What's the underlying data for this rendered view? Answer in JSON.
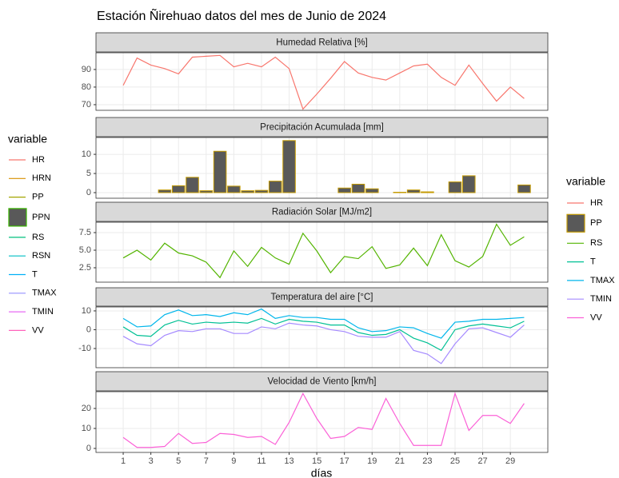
{
  "chart_data": {
    "type": "facet",
    "title": "Estación Ñirehuao datos del mes de Junio de 2024",
    "xlabel": "días",
    "x": [
      1,
      2,
      3,
      4,
      5,
      6,
      7,
      8,
      9,
      10,
      11,
      12,
      13,
      14,
      15,
      16,
      17,
      18,
      19,
      20,
      21,
      22,
      23,
      24,
      25,
      26,
      27,
      28,
      29,
      30
    ],
    "xlim": [
      -0.97,
      31.71
    ],
    "xticks": [
      1,
      3,
      5,
      7,
      9,
      11,
      13,
      15,
      17,
      19,
      21,
      23,
      25,
      27,
      29
    ],
    "grid": true,
    "legends": [
      {
        "position": "left",
        "title": "variable",
        "entries": [
          {
            "name": "HR",
            "color": "#F8766D"
          },
          {
            "name": "HRN",
            "color": "#D89000"
          },
          {
            "name": "PP",
            "color": "#A3A500"
          },
          {
            "name": "PPN",
            "color": "#39B600",
            "fill": "#595959"
          },
          {
            "name": "RS",
            "color": "#00BF7D"
          },
          {
            "name": "RSN",
            "color": "#00BFC4"
          },
          {
            "name": "T",
            "color": "#00B0F6"
          },
          {
            "name": "TMAX",
            "color": "#9590FF"
          },
          {
            "name": "TMIN",
            "color": "#E76BF3"
          },
          {
            "name": "VV",
            "color": "#FF62BC"
          }
        ]
      },
      {
        "position": "right",
        "title": "variable",
        "entries": [
          {
            "name": "HR",
            "color": "#F8766D"
          },
          {
            "name": "PP",
            "color": "#C49A00",
            "fill": "#595959"
          },
          {
            "name": "RS",
            "color": "#53B400"
          },
          {
            "name": "T",
            "color": "#00C094"
          },
          {
            "name": "TMAX",
            "color": "#00B6EB"
          },
          {
            "name": "TMIN",
            "color": "#A58AFF"
          },
          {
            "name": "VV",
            "color": "#FB61D7"
          }
        ]
      }
    ],
    "panels": [
      {
        "type": "line",
        "title": "Humedad Relativa [%]",
        "ylim": [
          66.8,
          99.5
        ],
        "yticks": [
          70,
          80,
          90
        ],
        "series": [
          {
            "name": "HR",
            "color": "#F8766D",
            "values": [
              81,
              96.5,
              92.5,
              90.5,
              87.5,
              97,
              97.5,
              98,
              91.5,
              93.5,
              91.5,
              97,
              90.5,
              67.5,
              76,
              85,
              94.5,
              88,
              85.5,
              84,
              88,
              92,
              93,
              85.5,
              81,
              92.5,
              82,
              72,
              80,
              73.5
            ]
          }
        ]
      },
      {
        "type": "bar",
        "title": "Precipitación Acumulada [mm]",
        "ylim": [
          -1.46,
          14.4
        ],
        "yticks": [
          0,
          5,
          10
        ],
        "series": [
          {
            "name": "PP",
            "color": "#C49A00",
            "fill": "#595959",
            "values": [
              0,
              0,
              0,
              0.7,
              1.8,
              4,
              0.5,
              10.8,
              1.7,
              0.5,
              0.6,
              3,
              13.6,
              0,
              0,
              0,
              1.2,
              2.2,
              1,
              0,
              0.1,
              0.7,
              0.2,
              0,
              2.8,
              4.4,
              0,
              0,
              0,
              2
            ]
          }
        ]
      },
      {
        "type": "line",
        "title": "Radiación Solar [MJ/m2]",
        "ylim": [
          0.45,
          8.98
        ],
        "yticks": [
          2.5,
          {
            "value": 5,
            "label": "5.0"
          },
          7.5
        ],
        "series": [
          {
            "name": "RS",
            "color": "#53B400",
            "values": [
              3.9,
              5.0,
              3.6,
              6.0,
              4.6,
              4.2,
              3.3,
              1.1,
              4.9,
              2.7,
              5.4,
              3.9,
              3.0,
              7.4,
              4.9,
              1.8,
              4.1,
              3.8,
              5.5,
              2.4,
              2.9,
              5.3,
              2.8,
              7.2,
              3.5,
              2.6,
              4.1,
              8.7,
              5.7,
              6.9
            ]
          }
        ]
      },
      {
        "type": "line",
        "title": "Temperatura del aire [°C]",
        "ylim": [
          -20.2,
          12.1
        ],
        "yticks": [
          -10,
          0,
          10
        ],
        "series": [
          {
            "name": "T",
            "color": "#00C094",
            "values": [
              1.5,
              -3,
              -3.5,
              2.5,
              5,
              3,
              4,
              3.5,
              4,
              3.5,
              6,
              3,
              5.5,
              4.5,
              4,
              2.5,
              2.5,
              -1.5,
              -3,
              -2.5,
              0,
              -4.5,
              -7,
              -11,
              0,
              2,
              3,
              2,
              1,
              4.5
            ]
          },
          {
            "name": "TMAX",
            "color": "#00B6EB",
            "values": [
              6,
              1.5,
              2,
              8,
              10.5,
              7.5,
              8,
              7,
              9,
              8,
              11,
              6,
              7.5,
              6.5,
              6.5,
              5.5,
              5.5,
              1,
              -1,
              -0.5,
              1.5,
              1,
              -2,
              -4.5,
              4,
              4.5,
              5.5,
              5.5,
              6,
              6.5
            ]
          },
          {
            "name": "TMIN",
            "color": "#A58AFF",
            "values": [
              -3.5,
              -7.5,
              -8.5,
              -3,
              -0.5,
              -1,
              0.5,
              0.5,
              -2,
              -2,
              1.5,
              0.5,
              3.5,
              2.5,
              2,
              0,
              -1,
              -3.5,
              -4,
              -4,
              -1,
              -11,
              -13,
              -18,
              -7.5,
              0.5,
              1,
              -1.5,
              -4,
              2.5
            ]
          }
        ]
      },
      {
        "type": "line",
        "title": "Velocidad de Viento [km/h]",
        "ylim": [
          -2,
          28.4
        ],
        "yticks": [
          0,
          10,
          20
        ],
        "series": [
          {
            "name": "VV",
            "color": "#FB61D7",
            "values": [
              5.5,
              0.5,
              0.5,
              1,
              7.5,
              2.5,
              3,
              7.5,
              7,
              5.5,
              6,
              2,
              13,
              27.5,
              15,
              5,
              6,
              10.5,
              9.5,
              25,
              12.5,
              1.5,
              1.5,
              1.5,
              27.5,
              9,
              16.5,
              16.5,
              12.5,
              22.5
            ]
          }
        ]
      }
    ]
  }
}
